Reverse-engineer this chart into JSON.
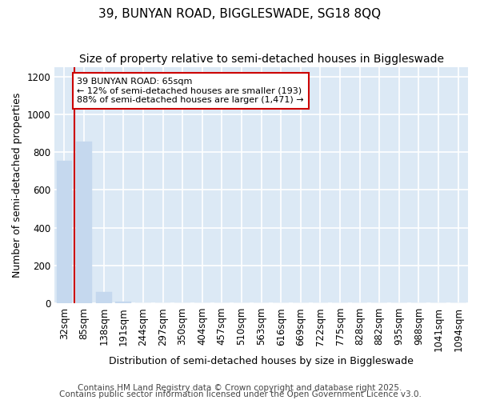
{
  "title1": "39, BUNYAN ROAD, BIGGLESWADE, SG18 8QQ",
  "title2": "Size of property relative to semi-detached houses in Biggleswade",
  "xlabel": "Distribution of semi-detached houses by size in Biggleswade",
  "ylabel": "Number of semi-detached properties",
  "categories": [
    "32sqm",
    "85sqm",
    "138sqm",
    "191sqm",
    "244sqm",
    "297sqm",
    "350sqm",
    "404sqm",
    "457sqm",
    "510sqm",
    "563sqm",
    "616sqm",
    "669sqm",
    "722sqm",
    "775sqm",
    "828sqm",
    "882sqm",
    "935sqm",
    "988sqm",
    "1041sqm",
    "1094sqm"
  ],
  "values": [
    755,
    858,
    60,
    10,
    0,
    0,
    0,
    0,
    0,
    0,
    0,
    0,
    0,
    0,
    0,
    0,
    0,
    0,
    0,
    0,
    0
  ],
  "bar_color": "#c5d8ee",
  "bar_edge_color": "#c5d8ee",
  "vline_color": "#cc0000",
  "vline_x": 0.5,
  "annotation_text": "39 BUNYAN ROAD: 65sqm\n← 12% of semi-detached houses are smaller (193)\n88% of semi-detached houses are larger (1,471) →",
  "annotation_box_color": "#cc0000",
  "annotation_box_fill": "#ffffff",
  "ylim": [
    0,
    1250
  ],
  "yticks": [
    0,
    200,
    400,
    600,
    800,
    1000,
    1200
  ],
  "plot_bg_color": "#dce9f5",
  "fig_bg_color": "#ffffff",
  "grid_color": "#ffffff",
  "title1_fontsize": 11,
  "title2_fontsize": 10,
  "axis_fontsize": 9,
  "tick_fontsize": 8.5,
  "annot_fontsize": 8,
  "footer_fontsize": 7.5,
  "footer1": "Contains HM Land Registry data © Crown copyright and database right 2025.",
  "footer2": "Contains public sector information licensed under the Open Government Licence v3.0."
}
